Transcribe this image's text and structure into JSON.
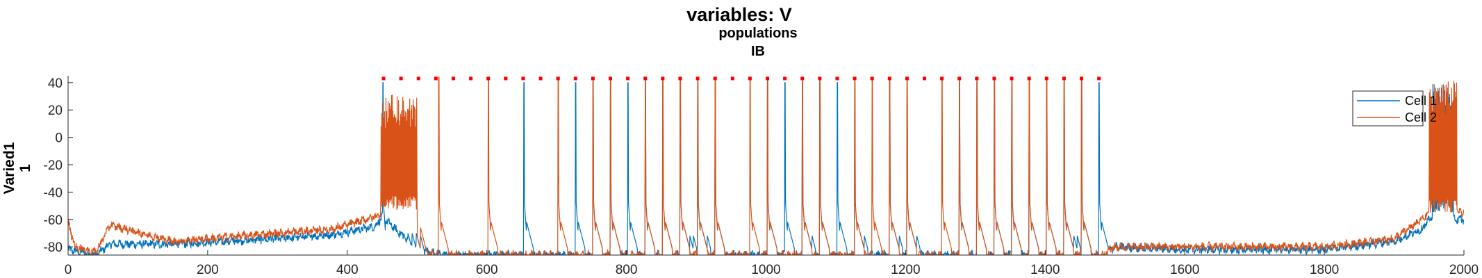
{
  "chart_data": {
    "type": "line",
    "title": "variables: V",
    "subtitle_lines": [
      "populations",
      "IB"
    ],
    "ylabel_lines": [
      "Varied1",
      "1"
    ],
    "xlabel": "",
    "xlim": [
      0,
      2000
    ],
    "ylim": [
      -86,
      45
    ],
    "x_ticks": [
      0,
      200,
      400,
      600,
      800,
      1000,
      1200,
      1400,
      1600,
      1800,
      2000
    ],
    "y_ticks": [
      -80,
      -60,
      -40,
      -20,
      0,
      20,
      40
    ],
    "legend": {
      "position": "top-right",
      "entries": [
        "Cell 1",
        "Cell 2"
      ]
    },
    "series": [
      {
        "name": "Cell 1",
        "color": "#0072BD",
        "baseline": [
          [
            0,
            -82
          ],
          [
            40,
            -86
          ],
          [
            60,
            -78
          ],
          [
            150,
            -78
          ],
          [
            300,
            -74
          ],
          [
            380,
            -71
          ],
          [
            440,
            -65
          ],
          [
            450,
            -58
          ],
          [
            500,
            -82
          ],
          [
            540,
            -86
          ],
          [
            1480,
            -86
          ],
          [
            1500,
            -80
          ],
          [
            1600,
            -82
          ],
          [
            1800,
            -82
          ],
          [
            1900,
            -76
          ],
          [
            1940,
            -67
          ],
          [
            1950,
            -60
          ]
        ],
        "spikes": [
          451,
          456,
          461,
          467,
          473,
          479,
          485,
          491,
          496,
          653,
          727,
          752,
          777,
          802,
          827,
          852,
          877,
          882,
          887,
          902,
          907,
          927,
          1002,
          1027,
          1052,
          1057,
          1077,
          1102,
          1127,
          1132,
          1177,
          1182,
          1202,
          1207,
          1277,
          1302,
          1327,
          1352,
          1377,
          1402,
          1427,
          1432,
          1437,
          1452,
          1477,
          1958,
          1963,
          1968,
          1973,
          1978
        ],
        "burst_region": {
          "start": 1955,
          "end": 1985,
          "low": -55,
          "high": 40
        },
        "spike_peak": 40,
        "noise": 2.5
      },
      {
        "name": "Cell 2",
        "color": "#D95319",
        "baseline": [
          [
            0,
            -62
          ],
          [
            10,
            -80
          ],
          [
            40,
            -84
          ],
          [
            60,
            -64
          ],
          [
            150,
            -76
          ],
          [
            300,
            -70
          ],
          [
            380,
            -67
          ],
          [
            440,
            -58
          ],
          [
            450,
            -55
          ],
          [
            500,
            -84
          ],
          [
            540,
            -86
          ],
          [
            1480,
            -86
          ],
          [
            1500,
            -80
          ],
          [
            1600,
            -80
          ],
          [
            1800,
            -80
          ],
          [
            1900,
            -74
          ],
          [
            1940,
            -60
          ],
          [
            1950,
            -55
          ]
        ],
        "spikes": [
          451,
          459,
          467,
          475,
          483,
          491,
          499,
          531,
          602,
          702,
          752,
          777,
          827,
          852,
          877,
          902,
          927,
          977,
          1002,
          1052,
          1077,
          1127,
          1152,
          1177,
          1202,
          1252,
          1277,
          1302,
          1327,
          1352,
          1377,
          1402,
          1427,
          1452,
          1953,
          1958,
          1963,
          1968,
          1973,
          1978,
          1983
        ],
        "burst_region": {
          "start": 448,
          "end": 500,
          "low": -53,
          "high": 32
        },
        "burst_region2": {
          "start": 1950,
          "end": 1990,
          "low": -55,
          "high": 42
        },
        "spike_peak": 44,
        "noise": 2.5
      }
    ],
    "spike_markers": {
      "color": "#FF0000",
      "y": 43,
      "x": [
        452,
        477,
        502,
        527,
        552,
        577,
        602,
        627,
        652,
        677,
        702,
        727,
        752,
        777,
        802,
        827,
        852,
        877,
        902,
        927,
        952,
        977,
        1002,
        1027,
        1052,
        1077,
        1102,
        1127,
        1152,
        1177,
        1202,
        1227,
        1252,
        1277,
        1302,
        1327,
        1352,
        1377,
        1402,
        1427,
        1452,
        1477
      ]
    }
  }
}
